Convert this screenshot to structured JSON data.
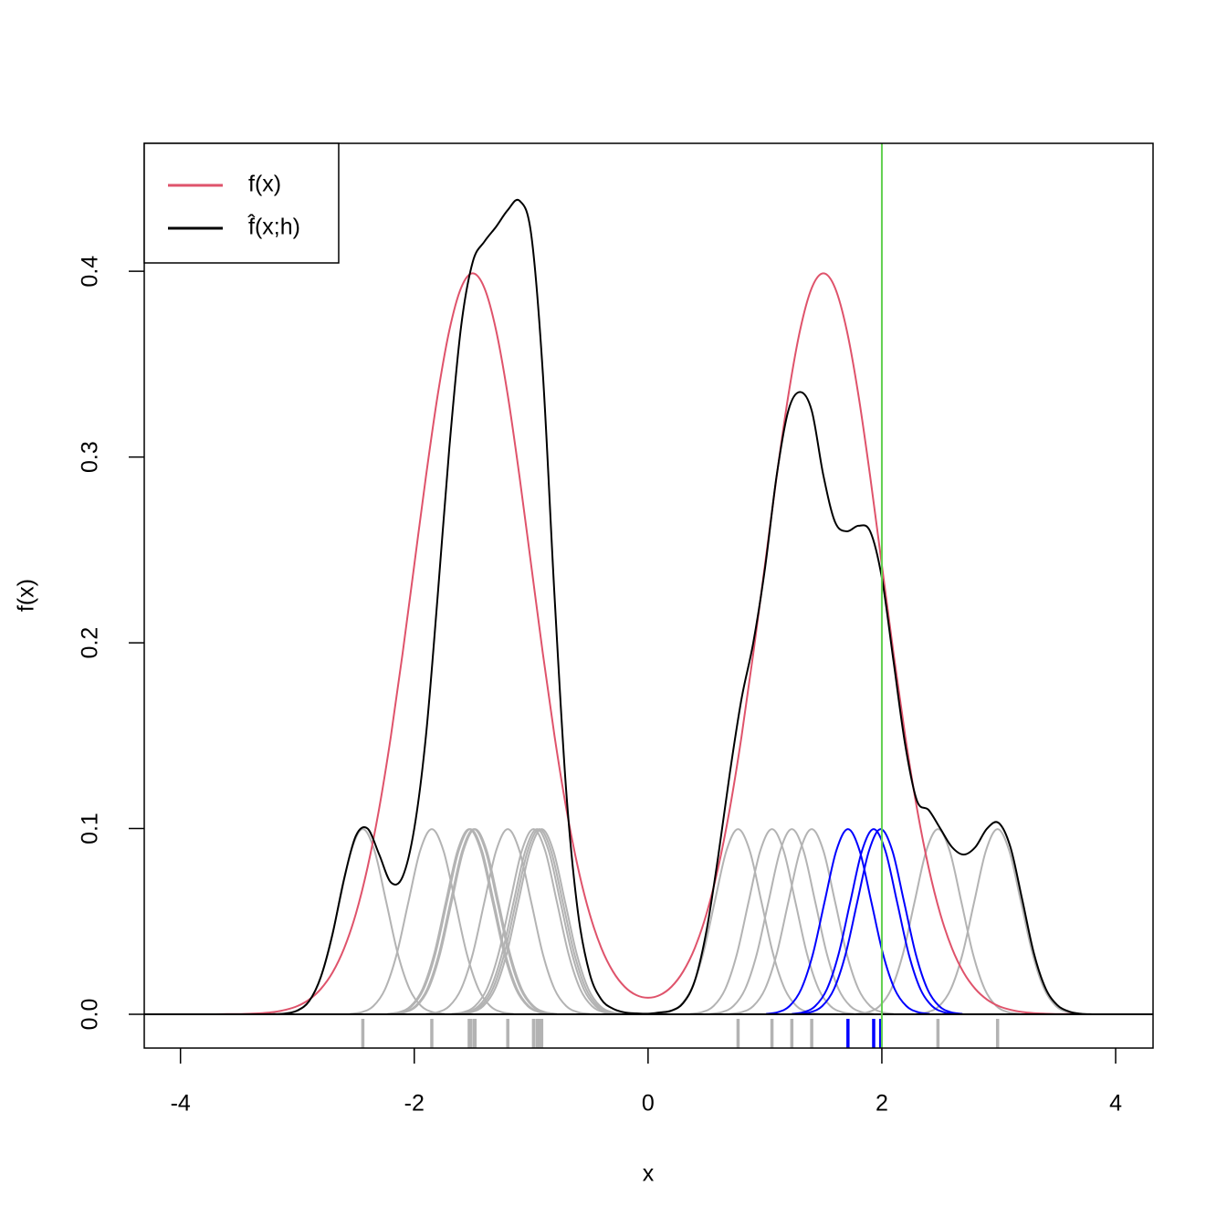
{
  "chart_data": {
    "type": "line",
    "xlabel": "x",
    "ylabel": "f(x)",
    "xlim": [
      -4.31,
      4.32
    ],
    "ylim": [
      -0.0182,
      0.4689
    ],
    "xticks": [
      -4,
      -2,
      0,
      2,
      4
    ],
    "yticks": [
      {
        "value": 0,
        "label": "0.0"
      },
      0.1,
      0.2,
      0.3,
      0.4
    ],
    "legend": "topleft",
    "hline": {
      "value": 0,
      "color": "#000000"
    },
    "vline": {
      "value": 2,
      "color": "#61d04f"
    },
    "x": [
      -4,
      -3.9,
      -3.8,
      -3.7,
      -3.6,
      -3.5,
      -3.4,
      -3.3,
      -3.2,
      -3.1,
      -3,
      -2.9,
      -2.8,
      -2.7,
      -2.6,
      -2.5,
      -2.4,
      -2.3,
      -2.2,
      -2.1,
      -2,
      -1.9,
      -1.8,
      -1.7,
      -1.6,
      -1.5,
      -1.4,
      -1.3,
      -1.2,
      -1.1,
      -1,
      -0.9,
      -0.8,
      -0.7,
      -0.6,
      -0.5,
      -0.4,
      -0.3,
      -0.2,
      -0.1,
      0,
      0.1,
      0.2,
      0.3,
      0.4,
      0.5,
      0.6,
      0.7,
      0.8,
      0.9,
      1,
      1.1,
      1.2,
      1.3,
      1.4,
      1.5,
      1.6,
      1.7,
      1.8,
      1.9,
      2,
      2.1,
      2.2,
      2.3,
      2.4,
      2.5,
      2.6,
      2.7,
      2.8,
      2.9,
      3,
      3.1,
      3.2,
      3.3,
      3.4,
      3.5,
      3.6,
      3.7,
      3.8,
      3.9,
      4
    ],
    "series": [
      {
        "name": "f(x)",
        "color": "#df536b",
        "values": [
          0,
          0,
          0,
          0,
          0.0001,
          0.0001,
          0.0003,
          0.0006,
          0.0012,
          0.0024,
          0.0044,
          0.0079,
          0.0136,
          0.0224,
          0.0355,
          0.054,
          0.079,
          0.1109,
          0.1497,
          0.1942,
          0.2419,
          0.2896,
          0.3332,
          0.3682,
          0.391,
          0.3989,
          0.391,
          0.3682,
          0.3332,
          0.2896,
          0.2419,
          0.1942,
          0.1497,
          0.1109,
          0.079,
          0.0541,
          0.0357,
          0.023,
          0.0148,
          0.0103,
          0.0089,
          0.0103,
          0.0148,
          0.023,
          0.0357,
          0.0541,
          0.079,
          0.1109,
          0.1497,
          0.1942,
          0.2419,
          0.2896,
          0.3332,
          0.3682,
          0.391,
          0.3989,
          0.391,
          0.3682,
          0.3332,
          0.2896,
          0.2419,
          0.1942,
          0.1497,
          0.1109,
          0.079,
          0.054,
          0.0355,
          0.0224,
          0.0136,
          0.0079,
          0.0044,
          0.0024,
          0.0012,
          0.0006,
          0.0003,
          0.0001,
          0.0001,
          0,
          0,
          0,
          0
        ]
      },
      {
        "name": "f̂(x;h)",
        "color": "#000000",
        "values": [
          0,
          0,
          0,
          0,
          0,
          0,
          0,
          0,
          0.0001,
          0.0004,
          0.002,
          0.007,
          0.02,
          0.043,
          0.073,
          0.096,
          0.1,
          0.086,
          0.071,
          0.074,
          0.1,
          0.15,
          0.225,
          0.305,
          0.37,
          0.405,
          0.416,
          0.424,
          0.433,
          0.438,
          0.42,
          0.345,
          0.225,
          0.12,
          0.055,
          0.022,
          0.008,
          0.003,
          0.001,
          0.0005,
          0.0003,
          0.001,
          0.002,
          0.006,
          0.018,
          0.045,
          0.085,
          0.13,
          0.17,
          0.2,
          0.24,
          0.29,
          0.325,
          0.335,
          0.325,
          0.29,
          0.265,
          0.26,
          0.263,
          0.26,
          0.235,
          0.19,
          0.145,
          0.115,
          0.11,
          0.1,
          0.09,
          0.086,
          0.09,
          0.1,
          0.103,
          0.09,
          0.062,
          0.033,
          0.014,
          0.005,
          0.0015,
          0.0003,
          0,
          0,
          0
        ]
      }
    ],
    "kernels": [
      {
        "center": -2.44,
        "color": "#b3b3b3",
        "x": [
          -3.14,
          -3.04,
          -2.94,
          -2.84,
          -2.74,
          -2.64,
          -2.54,
          -2.44,
          -2.34,
          -2.24,
          -2.14,
          -2.04,
          -1.94,
          -1.84,
          -1.74
        ],
        "values": [
          0.0002,
          0.0011,
          0.0044,
          0.0135,
          0.0324,
          0.0605,
          0.088,
          0.0997,
          0.088,
          0.0605,
          0.0324,
          0.0135,
          0.0044,
          0.0011,
          0.0002
        ]
      },
      {
        "center": -1.85,
        "color": "#b3b3b3",
        "x": [
          -2.55,
          -2.45,
          -2.35,
          -2.25,
          -2.15,
          -2.05,
          -1.95,
          -1.85,
          -1.75,
          -1.65,
          -1.55,
          -1.45,
          -1.35,
          -1.25,
          -1.15
        ],
        "values": [
          0.0002,
          0.0011,
          0.0044,
          0.0135,
          0.0324,
          0.0605,
          0.088,
          0.0997,
          0.088,
          0.0605,
          0.0324,
          0.0135,
          0.0044,
          0.0011,
          0.0002
        ]
      },
      {
        "center": -1.53,
        "color": "#b3b3b3",
        "x": [
          -2.23,
          -2.13,
          -2.03,
          -1.93,
          -1.83,
          -1.73,
          -1.63,
          -1.53,
          -1.43,
          -1.33,
          -1.23,
          -1.13,
          -1.03,
          -0.93,
          -0.83
        ],
        "values": [
          0.0002,
          0.0011,
          0.0044,
          0.0135,
          0.0324,
          0.0605,
          0.088,
          0.0997,
          0.088,
          0.0605,
          0.0324,
          0.0135,
          0.0044,
          0.0011,
          0.0002
        ]
      },
      {
        "center": -1.52,
        "color": "#b3b3b3",
        "x": [
          -2.22,
          -2.12,
          -2.02,
          -1.92,
          -1.82,
          -1.72,
          -1.62,
          -1.52,
          -1.42,
          -1.32,
          -1.22,
          -1.12,
          -1.02,
          -0.92,
          -0.82
        ],
        "values": [
          0.0002,
          0.0011,
          0.0044,
          0.0135,
          0.0324,
          0.0605,
          0.088,
          0.0997,
          0.088,
          0.0605,
          0.0324,
          0.0135,
          0.0044,
          0.0011,
          0.0002
        ]
      },
      {
        "center": -1.49,
        "color": "#b3b3b3",
        "x": [
          -2.19,
          -2.09,
          -1.99,
          -1.89,
          -1.79,
          -1.69,
          -1.59,
          -1.49,
          -1.39,
          -1.29,
          -1.19,
          -1.09,
          -0.99,
          -0.89,
          -0.79
        ],
        "values": [
          0.0002,
          0.0011,
          0.0044,
          0.0135,
          0.0324,
          0.0605,
          0.088,
          0.0997,
          0.088,
          0.0605,
          0.0324,
          0.0135,
          0.0044,
          0.0011,
          0.0002
        ]
      },
      {
        "center": -1.48,
        "color": "#b3b3b3",
        "x": [
          -2.18,
          -2.08,
          -1.98,
          -1.88,
          -1.78,
          -1.68,
          -1.58,
          -1.48,
          -1.38,
          -1.28,
          -1.18,
          -1.08,
          -0.98,
          -0.88,
          -0.78
        ],
        "values": [
          0.0002,
          0.0011,
          0.0044,
          0.0135,
          0.0324,
          0.0605,
          0.088,
          0.0997,
          0.088,
          0.0605,
          0.0324,
          0.0135,
          0.0044,
          0.0011,
          0.0002
        ]
      },
      {
        "center": -1.2,
        "color": "#b3b3b3",
        "x": [
          -1.9,
          -1.8,
          -1.7,
          -1.6,
          -1.5,
          -1.4,
          -1.3,
          -1.2,
          -1.1,
          -1,
          -0.9,
          -0.8,
          -0.7,
          -0.6,
          -0.5
        ],
        "values": [
          0.0002,
          0.0011,
          0.0044,
          0.0135,
          0.0324,
          0.0605,
          0.088,
          0.0997,
          0.088,
          0.0605,
          0.0324,
          0.0135,
          0.0044,
          0.0011,
          0.0002
        ]
      },
      {
        "center": -0.98,
        "color": "#b3b3b3",
        "x": [
          -1.68,
          -1.58,
          -1.48,
          -1.38,
          -1.28,
          -1.18,
          -1.08,
          -0.98,
          -0.88,
          -0.78,
          -0.68,
          -0.58,
          -0.48,
          -0.38,
          -0.28
        ],
        "values": [
          0.0002,
          0.0011,
          0.0044,
          0.0135,
          0.0324,
          0.0605,
          0.088,
          0.0997,
          0.088,
          0.0605,
          0.0324,
          0.0135,
          0.0044,
          0.0011,
          0.0002
        ]
      },
      {
        "center": -0.95,
        "color": "#b3b3b3",
        "x": [
          -1.65,
          -1.55,
          -1.45,
          -1.35,
          -1.25,
          -1.15,
          -1.05,
          -0.95,
          -0.85,
          -0.75,
          -0.65,
          -0.55,
          -0.45,
          -0.35,
          -0.25
        ],
        "values": [
          0.0002,
          0.0011,
          0.0044,
          0.0135,
          0.0324,
          0.0605,
          0.088,
          0.0997,
          0.088,
          0.0605,
          0.0324,
          0.0135,
          0.0044,
          0.0011,
          0.0002
        ]
      },
      {
        "center": -0.93,
        "color": "#b3b3b3",
        "x": [
          -1.63,
          -1.53,
          -1.43,
          -1.33,
          -1.23,
          -1.13,
          -1.03,
          -0.93,
          -0.83,
          -0.73,
          -0.63,
          -0.53,
          -0.43,
          -0.33,
          -0.23
        ],
        "values": [
          0.0002,
          0.0011,
          0.0044,
          0.0135,
          0.0324,
          0.0605,
          0.088,
          0.0997,
          0.088,
          0.0605,
          0.0324,
          0.0135,
          0.0044,
          0.0011,
          0.0002
        ]
      },
      {
        "center": -0.91,
        "color": "#b3b3b3",
        "x": [
          -1.61,
          -1.51,
          -1.41,
          -1.31,
          -1.21,
          -1.11,
          -1.01,
          -0.91,
          -0.81,
          -0.71,
          -0.61,
          -0.51,
          -0.41,
          -0.31,
          -0.21
        ],
        "values": [
          0.0002,
          0.0011,
          0.0044,
          0.0135,
          0.0324,
          0.0605,
          0.088,
          0.0997,
          0.088,
          0.0605,
          0.0324,
          0.0135,
          0.0044,
          0.0011,
          0.0002
        ]
      },
      {
        "center": 0.77,
        "color": "#b3b3b3",
        "x": [
          0.07,
          0.17,
          0.27,
          0.37,
          0.47,
          0.57,
          0.67,
          0.77,
          0.87,
          0.97,
          1.07,
          1.17,
          1.27,
          1.37,
          1.47
        ],
        "values": [
          0.0002,
          0.0011,
          0.0044,
          0.0135,
          0.0324,
          0.0605,
          0.088,
          0.0997,
          0.088,
          0.0605,
          0.0324,
          0.0135,
          0.0044,
          0.0011,
          0.0002
        ]
      },
      {
        "center": 1.06,
        "color": "#b3b3b3",
        "x": [
          0.36,
          0.46,
          0.56,
          0.66,
          0.76,
          0.86,
          0.96,
          1.06,
          1.16,
          1.26,
          1.36,
          1.46,
          1.56,
          1.66,
          1.76
        ],
        "values": [
          0.0002,
          0.0011,
          0.0044,
          0.0135,
          0.0324,
          0.0605,
          0.088,
          0.0997,
          0.088,
          0.0605,
          0.0324,
          0.0135,
          0.0044,
          0.0011,
          0.0002
        ]
      },
      {
        "center": 1.23,
        "color": "#b3b3b3",
        "x": [
          0.53,
          0.63,
          0.73,
          0.83,
          0.93,
          1.03,
          1.13,
          1.23,
          1.33,
          1.43,
          1.53,
          1.63,
          1.73,
          1.83,
          1.93
        ],
        "values": [
          0.0002,
          0.0011,
          0.0044,
          0.0135,
          0.0324,
          0.0605,
          0.088,
          0.0997,
          0.088,
          0.0605,
          0.0324,
          0.0135,
          0.0044,
          0.0011,
          0.0002
        ]
      },
      {
        "center": 1.4,
        "color": "#b3b3b3",
        "x": [
          0.7,
          0.8,
          0.9,
          1,
          1.1,
          1.2,
          1.3,
          1.4,
          1.5,
          1.6,
          1.7,
          1.8,
          1.9,
          2,
          2.1
        ],
        "values": [
          0.0002,
          0.0011,
          0.0044,
          0.0135,
          0.0324,
          0.0605,
          0.088,
          0.0997,
          0.088,
          0.0605,
          0.0324,
          0.0135,
          0.0044,
          0.0011,
          0.0002
        ]
      },
      {
        "center": 2.48,
        "color": "#b3b3b3",
        "x": [
          1.78,
          1.88,
          1.98,
          2.08,
          2.18,
          2.28,
          2.38,
          2.48,
          2.58,
          2.68,
          2.78,
          2.88,
          2.98,
          3.08,
          3.18
        ],
        "values": [
          0.0002,
          0.0011,
          0.0044,
          0.0135,
          0.0324,
          0.0605,
          0.088,
          0.0997,
          0.088,
          0.0605,
          0.0324,
          0.0135,
          0.0044,
          0.0011,
          0.0002
        ]
      },
      {
        "center": 2.99,
        "color": "#b3b3b3",
        "x": [
          2.29,
          2.39,
          2.49,
          2.59,
          2.69,
          2.79,
          2.89,
          2.99,
          3.09,
          3.19,
          3.29,
          3.39,
          3.49,
          3.59,
          3.69
        ],
        "values": [
          0.0002,
          0.0011,
          0.0044,
          0.0135,
          0.0324,
          0.0605,
          0.088,
          0.0997,
          0.088,
          0.0605,
          0.0324,
          0.0135,
          0.0044,
          0.0011,
          0.0002
        ]
      },
      {
        "center": 1.71,
        "color": "#0000ff",
        "x": [
          1.01,
          1.11,
          1.21,
          1.31,
          1.41,
          1.51,
          1.61,
          1.71,
          1.81,
          1.91,
          2.01,
          2.11,
          2.21,
          2.31,
          2.41
        ],
        "values": [
          0.0002,
          0.0011,
          0.0044,
          0.0135,
          0.0324,
          0.0605,
          0.088,
          0.0997,
          0.088,
          0.0605,
          0.0324,
          0.0135,
          0.0044,
          0.0011,
          0.0002
        ]
      },
      {
        "center": 1.93,
        "color": "#0000ff",
        "x": [
          1.23,
          1.33,
          1.43,
          1.53,
          1.63,
          1.73,
          1.83,
          1.93,
          2.03,
          2.13,
          2.23,
          2.33,
          2.43,
          2.53,
          2.63
        ],
        "values": [
          0.0002,
          0.0011,
          0.0044,
          0.0135,
          0.0324,
          0.0605,
          0.088,
          0.0997,
          0.088,
          0.0605,
          0.0324,
          0.0135,
          0.0044,
          0.0011,
          0.0002
        ]
      },
      {
        "center": 1.99,
        "color": "#0000ff",
        "x": [
          1.29,
          1.39,
          1.49,
          1.59,
          1.69,
          1.79,
          1.89,
          1.99,
          2.09,
          2.19,
          2.29,
          2.39,
          2.49,
          2.59,
          2.69
        ],
        "values": [
          0.0002,
          0.0011,
          0.0044,
          0.0135,
          0.0324,
          0.0605,
          0.088,
          0.0997,
          0.088,
          0.0605,
          0.0324,
          0.0135,
          0.0044,
          0.0011,
          0.0002
        ]
      }
    ]
  }
}
